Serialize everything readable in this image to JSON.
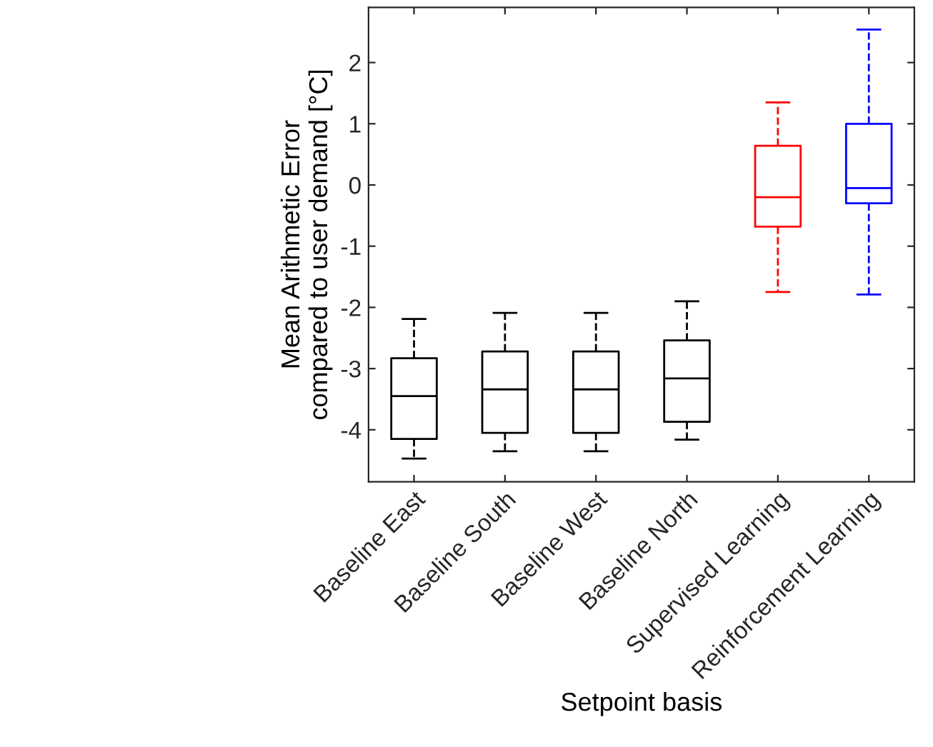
{
  "chart_data": {
    "type": "box",
    "xlabel": "Setpoint basis",
    "ylabel": "Mean Arithmetic Error\ncompared to user demand [°C]",
    "categories": [
      "Baseline East",
      "Baseline South",
      "Baseline West",
      "Baseline North",
      "Supervised Learning",
      "Reinforcement Learning"
    ],
    "colors": [
      "#000000",
      "#000000",
      "#000000",
      "#000000",
      "#ff0000",
      "#0000ff"
    ],
    "boxes": [
      {
        "low": -4.47,
        "q1": -4.15,
        "median": -3.45,
        "q3": -2.83,
        "high": -2.19
      },
      {
        "low": -4.35,
        "q1": -4.05,
        "median": -3.34,
        "q3": -2.72,
        "high": -2.09
      },
      {
        "low": -4.35,
        "q1": -4.05,
        "median": -3.34,
        "q3": -2.72,
        "high": -2.09
      },
      {
        "low": -4.16,
        "q1": -3.87,
        "median": -3.16,
        "q3": -2.54,
        "high": -1.9
      },
      {
        "low": -1.75,
        "q1": -0.68,
        "median": -0.2,
        "q3": 0.64,
        "high": 1.35
      },
      {
        "low": -1.79,
        "q1": -0.3,
        "median": -0.05,
        "q3": 1.0,
        "high": 2.54
      }
    ],
    "ylim": [
      -4.85,
      2.9
    ],
    "yticks": [
      -4,
      -3,
      -2,
      -1,
      0,
      1,
      2
    ],
    "grid": false,
    "line_style": "dashed"
  }
}
